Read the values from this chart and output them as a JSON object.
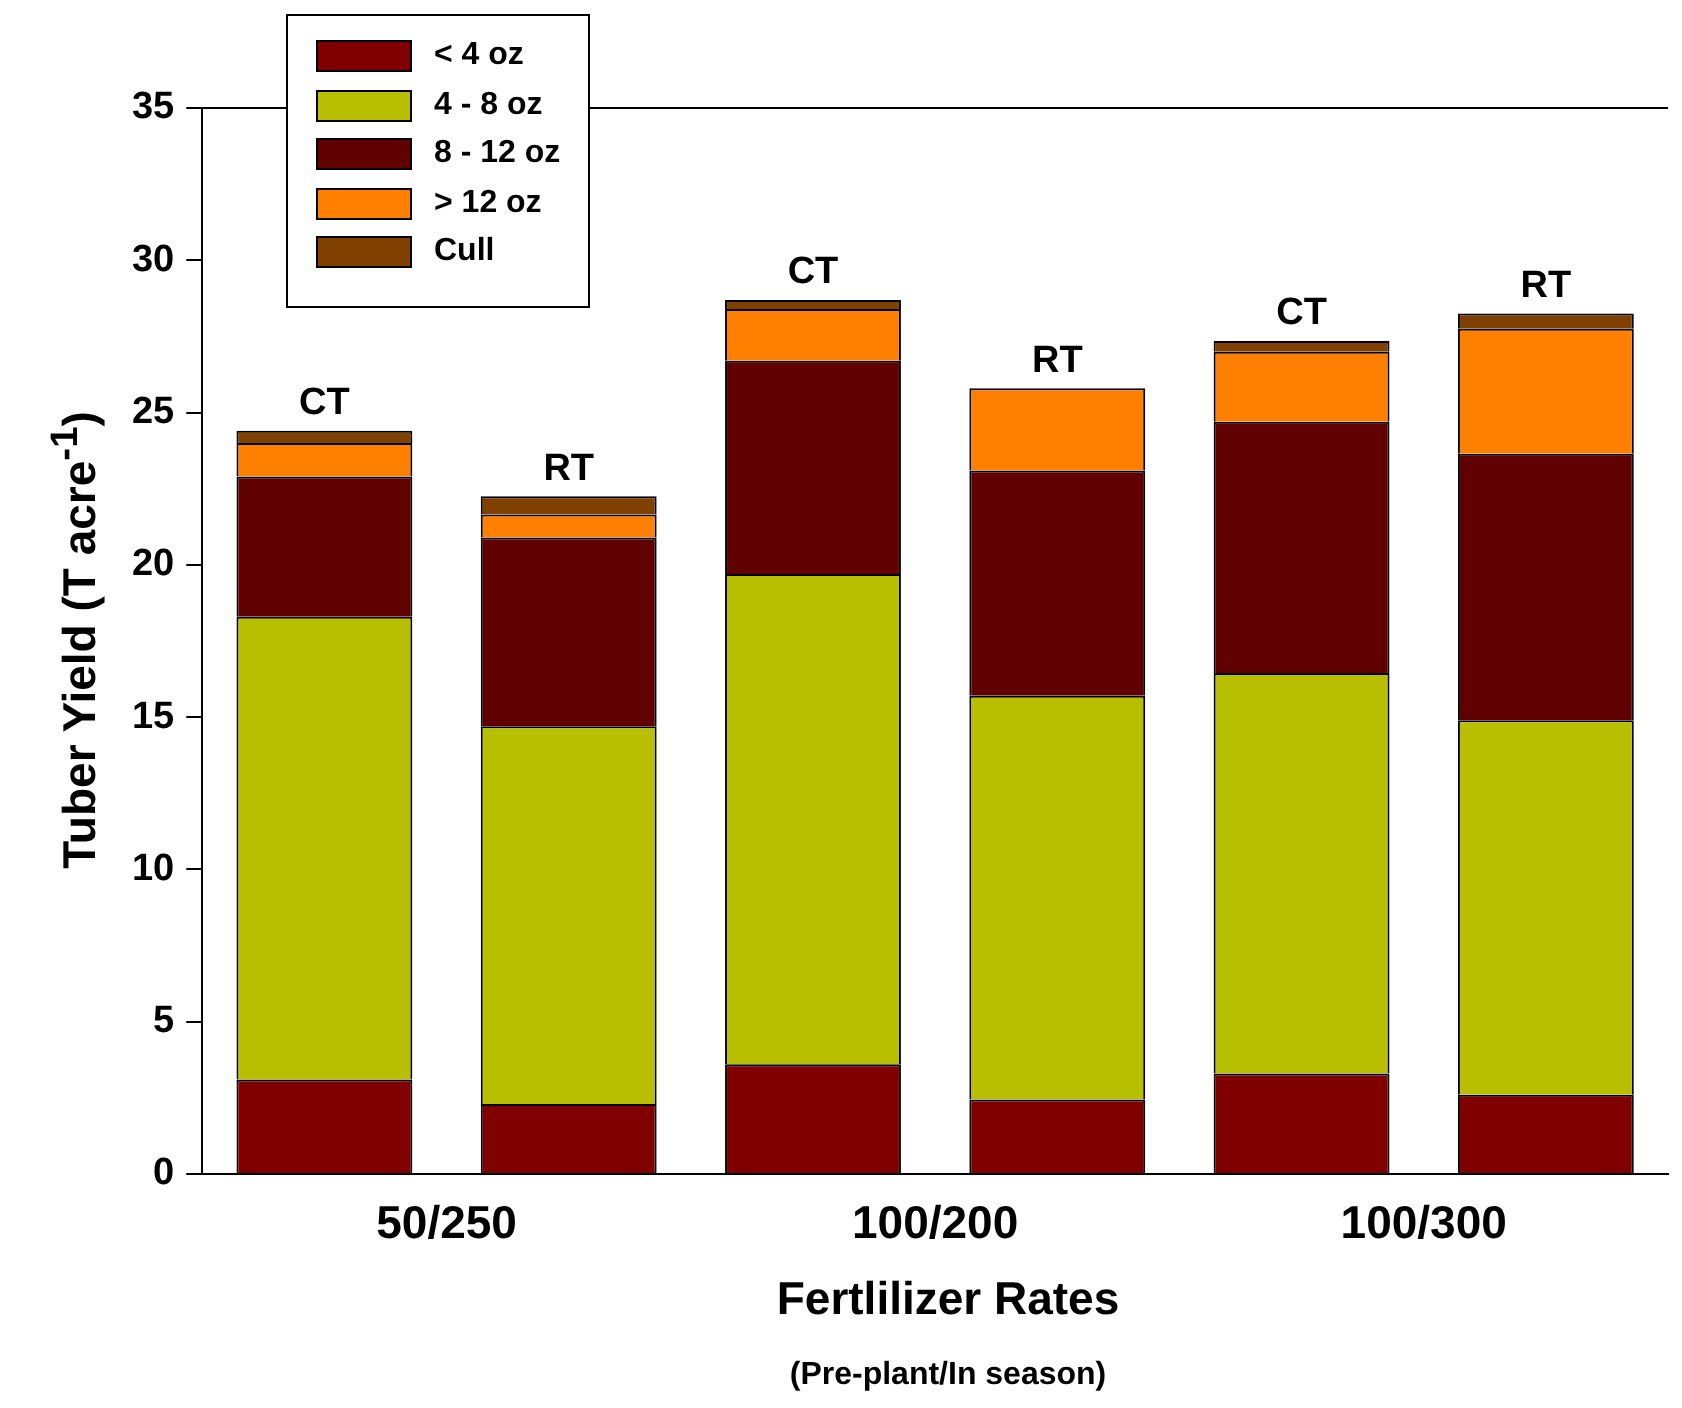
{
  "chart_data": {
    "type": "bar",
    "stacked": true,
    "xlabel": "Fertlilizer Rates",
    "ylabel": "Tuber Yield (T acre$^{-1}$)",
    "annotations": [
      "(Pre-plant/In season)"
    ],
    "categories": [
      "50/250",
      null,
      "100/200",
      null,
      "100/300",
      null
    ],
    "series": [
      {
        "name": "< 4 oz",
        "color": "#800000",
        "values": [
          3.1,
          2.3,
          3.6,
          2.45,
          3.3,
          2.6
        ]
      },
      {
        "name": "4 - 8 oz",
        "color": "#b8bf00",
        "values": [
          15.2,
          12.4,
          16.1,
          13.25,
          13.15,
          12.3
        ]
      },
      {
        "name": "8 - 12 oz",
        "color": "#600000",
        "values": [
          4.6,
          6.2,
          7.0,
          7.4,
          8.25,
          8.75
        ]
      },
      {
        "name": "> 12 oz",
        "color": "#ff8000",
        "values": [
          1.1,
          0.75,
          1.7,
          2.7,
          2.3,
          4.1
        ],
        "value_labels": [
          null,
          null,
          null,
          "RT",
          null,
          null
        ]
      },
      {
        "name": "Cull",
        "color": "#804000",
        "values": [
          0.4,
          0.6,
          0.3,
          null,
          0.35,
          0.5
        ],
        "value_labels": [
          "CT",
          "RT",
          "CT",
          null,
          "CT",
          "RT"
        ]
      }
    ],
    "ylim": [
      0,
      35
    ],
    "yticks": [
      0,
      5,
      10,
      15,
      20,
      25,
      30,
      35
    ],
    "grid": false,
    "legend": "top left"
  }
}
